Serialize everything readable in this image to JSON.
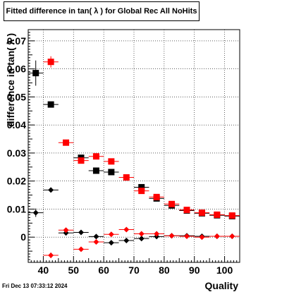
{
  "chart_data": {
    "type": "scatter",
    "title": "Fitted difference in tan( λ ) for Global Rec All NoHits",
    "xlabel": "Quality",
    "ylabel": "difference in tan( λ )",
    "xlim": [
      35,
      105
    ],
    "ylim": [
      -0.009,
      0.074
    ],
    "x_ticks": [
      40,
      50,
      60,
      70,
      80,
      90,
      100
    ],
    "y_ticks": [
      0,
      0.01,
      0.02,
      0.03,
      0.04,
      0.05,
      0.06,
      0.07
    ],
    "x_tick_labels": [
      "40",
      "50",
      "60",
      "70",
      "80",
      "90",
      "100"
    ],
    "y_tick_labels": [
      "0",
      "0.01",
      "0.02",
      "0.03",
      "0.04",
      "0.05",
      "0.06",
      "0.07"
    ],
    "grid": true,
    "timestamp": "Fri Dec 13 07:33:12 2024",
    "series": [
      {
        "color": "#000000",
        "marker": "square",
        "x": [
          37.5,
          42.5,
          52.5,
          57.5,
          62.5,
          72.5,
          77.5,
          82.5,
          87.5,
          92.5,
          97.5,
          102.5
        ],
        "y": [
          0.0585,
          0.0473,
          0.0283,
          0.0237,
          0.0232,
          0.0178,
          0.0138,
          0.0113,
          0.0095,
          0.0085,
          0.0078,
          0.0075
        ],
        "yerr": [
          0.0045,
          0.001,
          0.001,
          0.0008,
          0.0008,
          0.0008,
          0.0007,
          0.0006,
          0.0006,
          0.0005,
          0.0005,
          0.0005
        ]
      },
      {
        "color": "#ff0000",
        "marker": "square",
        "x": [
          42.5,
          47.5,
          52.5,
          57.5,
          62.5,
          67.5,
          72.5,
          77.5,
          82.5,
          87.5,
          92.5,
          97.5,
          102.5
        ],
        "y": [
          0.0625,
          0.0337,
          0.0273,
          0.0288,
          0.027,
          0.0213,
          0.0165,
          0.0143,
          0.0118,
          0.0097,
          0.0087,
          0.008,
          0.0077
        ],
        "yerr": [
          0.002,
          0.0008,
          0.0008,
          0.0007,
          0.0007,
          0.0006,
          0.0006,
          0.0005,
          0.0005,
          0.0005,
          0.0005,
          0.0004,
          0.0004
        ]
      },
      {
        "color": "#000000",
        "marker": "diamond",
        "x": [
          37.5,
          42.5,
          47.5,
          52.5,
          57.5,
          62.5,
          67.5,
          72.5,
          77.5,
          82.5,
          87.5,
          92.5,
          97.5,
          102.5
        ],
        "y": [
          0.0087,
          0.0168,
          0.0015,
          0.0017,
          0.0002,
          -0.002,
          -0.0012,
          -0.0005,
          0.0002,
          0.0005,
          0.0005,
          0.0003,
          0.0003,
          0.0003
        ],
        "yerr": [
          0.0015,
          0.0005,
          0.0006,
          0.0005,
          0.0004,
          0.0004,
          0.0004,
          0.0003,
          0.0003,
          0.0003,
          0.0003,
          0.0003,
          0.0003,
          0.0003
        ]
      },
      {
        "color": "#ff0000",
        "marker": "diamond",
        "x": [
          42.5,
          47.5,
          52.5,
          57.5,
          62.5,
          67.5,
          72.5,
          77.5,
          82.5,
          87.5,
          92.5,
          97.5,
          102.5
        ],
        "y": [
          -0.0065,
          0.0025,
          -0.0043,
          -0.0017,
          0.001,
          0.0027,
          0.0012,
          0.0012,
          0.0005,
          0.0003,
          0.0,
          0.0003,
          0.0003
        ],
        "yerr": [
          0.001,
          0.0006,
          0.0005,
          0.0004,
          0.0004,
          0.0004,
          0.0003,
          0.0003,
          0.0003,
          0.0003,
          0.0003,
          0.0003,
          0.0003
        ]
      }
    ]
  }
}
